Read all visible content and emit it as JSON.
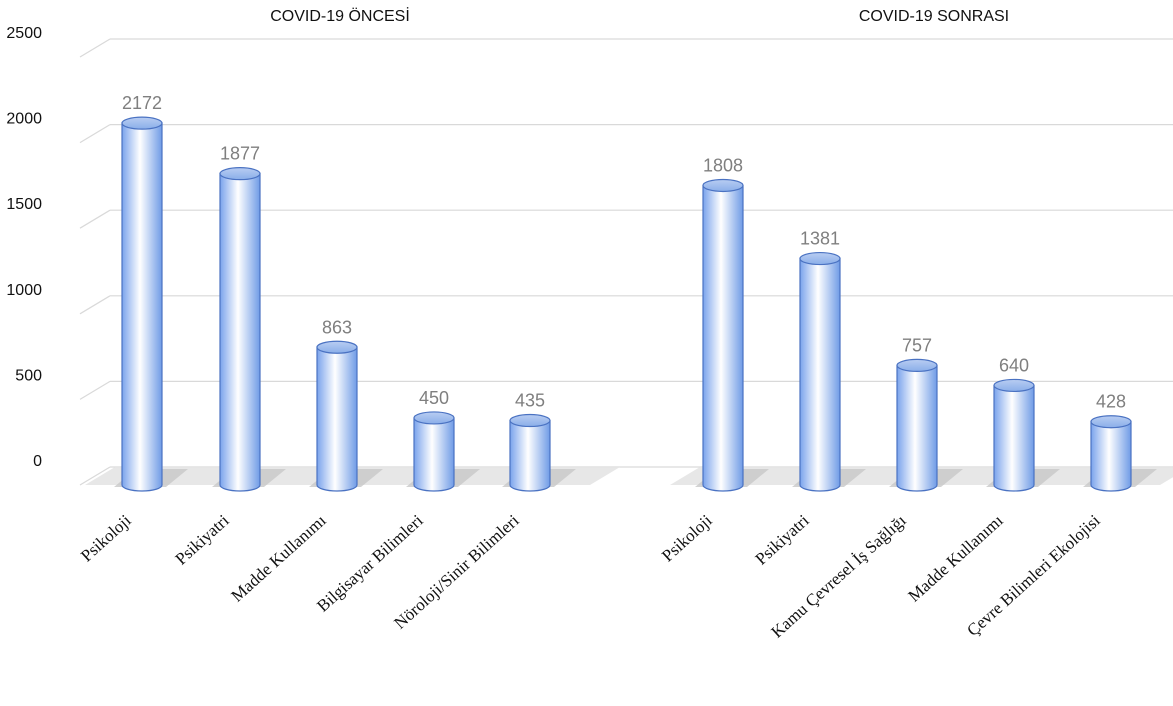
{
  "chart_data": {
    "type": "bar",
    "style": "3d-cylinder",
    "ylim": [
      0,
      2500
    ],
    "yticks": [
      "0",
      "500",
      "1000",
      "1500",
      "2000",
      "2500"
    ],
    "grid": true,
    "colors": {
      "bar_light": "#ffffff",
      "bar_dark": "#6f9be6",
      "bar_edge": "#4a72c2",
      "grid": "#d9d9d9",
      "floor": "#c8c8c8",
      "data_label": "#7f7f7f"
    },
    "panels": [
      {
        "title": "COVID-19 ÖNCESİ",
        "categories": [
          "Psikoloji",
          "Psikiyatri",
          "Madde Kullanımı",
          "Bilgisayar Bilimleri",
          "Nöroloji/Sinir Bilimleri"
        ],
        "values": [
          2172,
          1877,
          863,
          450,
          435
        ],
        "data_labels": [
          "2172",
          "1877",
          "863",
          "450",
          "435"
        ]
      },
      {
        "title": "COVID-19 SONRASI",
        "categories": [
          "Psikoloji",
          "Psikiyatri",
          "Kamu Çevresel İş Sağlığı",
          "Madde Kullanımı",
          "Çevre Bilimleri Ekolojisi"
        ],
        "values": [
          1808,
          1381,
          757,
          640,
          428
        ],
        "data_labels": [
          "1808",
          "1381",
          "757",
          "640",
          "428"
        ]
      }
    ]
  }
}
